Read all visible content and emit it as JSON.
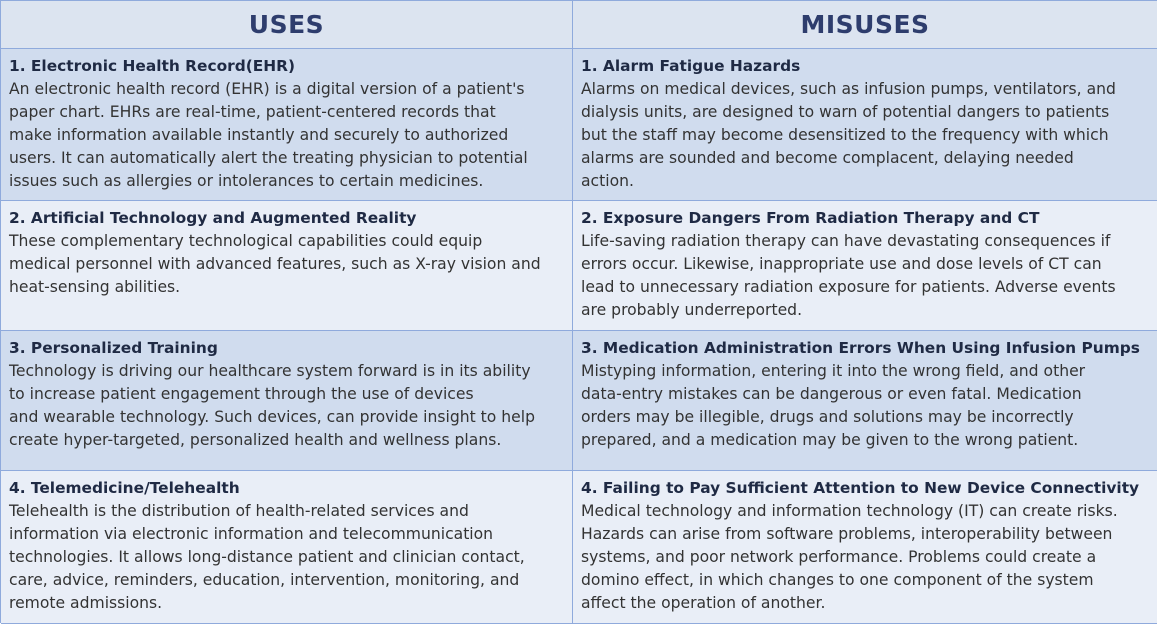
{
  "headers": {
    "uses": "USES",
    "misuses": "MISUSES"
  },
  "uses": [
    {
      "title": "1. Electronic Health Record(EHR)",
      "body": "An electronic health record (EHR) is a digital version of a patient's\npaper chart. EHRs are real-time, patient-centered records that\nmake information available instantly and securely to authorized\nusers. It can automatically alert the treating physician to potential\nissues such as allergies or intolerances to certain medicines."
    },
    {
      "title": "2. Artificial Technology and Augmented Reality",
      "body": "These complementary technological capabilities could equip\nmedical personnel with advanced features, such as X-ray vision and\nheat-sensing abilities."
    },
    {
      "title": "3. Personalized Training",
      "body": "Technology is driving our healthcare system forward is in its ability\nto increase patient engagement through the use of devices\nand wearable technology. Such devices, can provide insight to help\ncreate hyper-targeted, personalized health and wellness plans."
    },
    {
      "title": "4. Telemedicine/Telehealth",
      "body": "Telehealth is the distribution of health-related services and\ninformation via electronic information and telecommunication\ntechnologies. It allows long-distance patient and clinician contact,\ncare, advice, reminders, education, intervention, monitoring, and\nremote admissions."
    }
  ],
  "misuses": [
    {
      "title": "1. Alarm Fatigue Hazards",
      "body": "Alarms on medical devices, such as infusion pumps, ventilators, and\ndialysis units, are designed to warn of potential dangers to patients\nbut the staff may become desensitized to the frequency with which\nalarms are sounded and become complacent, delaying needed\naction."
    },
    {
      "title": "2. Exposure Dangers From Radiation Therapy and CT",
      "body": "Life-saving radiation therapy can have devastating consequences if\nerrors occur. Likewise, inappropriate use and dose levels of CT can\nlead to unnecessary radiation exposure for patients. Adverse events\nare probably underreported."
    },
    {
      "title": "3. Medication Administration Errors When Using Infusion Pumps",
      "body": "Mistyping information, entering it into the wrong field, and other\ndata-entry mistakes can be dangerous or even fatal. Medication\norders may be illegible, drugs and solutions may be incorrectly\nprepared, and a medication may be given to the wrong patient."
    },
    {
      "title": "4. Failing to Pay Sufficient Attention to New Device Connectivity",
      "body": "Medical technology and information technology (IT) can create risks.\nHazards can arise from software problems, interoperability between\nsystems, and poor network performance. Problems could create a\ndomino effect, in which changes to one component of the system\naffect the operation of another."
    }
  ]
}
